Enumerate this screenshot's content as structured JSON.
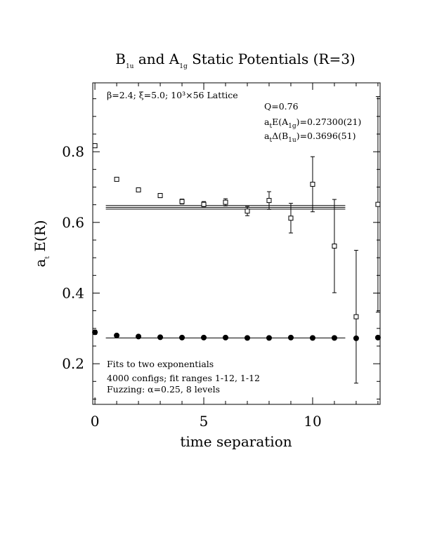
{
  "chart_data": {
    "type": "scatter",
    "title": "B1u and A1g Static Potentials (R=3)",
    "title_parts": {
      "b": "B",
      "b_sub": "1u",
      "mid": " and A",
      "a_sub": "1g",
      "tail": " Static Potentials (R=3)"
    },
    "xlabel": "time separation",
    "ylabel": "a_t E(R)",
    "ylabel_parts": {
      "main": "a",
      "sub": "t",
      "tail": " E(R)"
    },
    "xlim": [
      -0.1,
      13.1
    ],
    "ylim": [
      0.085,
      0.995
    ],
    "x_ticks": [
      0,
      5,
      10
    ],
    "x_tick_labels": [
      "0",
      "5",
      "10"
    ],
    "y_ticks": [
      0.2,
      0.4,
      0.6,
      0.8
    ],
    "y_tick_labels": [
      "0.2",
      "0.4",
      "0.6",
      "0.8"
    ],
    "grid": false,
    "series": [
      {
        "marker": "filled-circle",
        "x": [
          0,
          1,
          2,
          3,
          4,
          5,
          6,
          7,
          8,
          9,
          10,
          11,
          12,
          13
        ],
        "y": [
          0.289,
          0.28,
          0.277,
          0.275,
          0.274,
          0.274,
          0.274,
          0.273,
          0.273,
          0.274,
          0.273,
          0.273,
          0.272,
          0.274
        ],
        "err": [
          0.006,
          0.004,
          0.003,
          0.003,
          0.003,
          0.003,
          0.003,
          0.003,
          0.003,
          0.003,
          0.003,
          0.003,
          0.004,
          0.005
        ],
        "fit": {
          "value": 0.273,
          "x_range": [
            0.5,
            11.5
          ]
        }
      },
      {
        "marker": "open-square",
        "x": [
          0,
          1,
          2,
          3,
          4,
          5,
          6,
          7,
          8,
          9,
          10,
          11,
          12,
          13
        ],
        "y": [
          0.817,
          0.722,
          0.692,
          0.676,
          0.659,
          0.651,
          0.657,
          0.632,
          0.662,
          0.612,
          0.708,
          0.533,
          0.333,
          0.651
        ],
        "err": [
          0.004,
          0.004,
          0.005,
          0.006,
          0.007,
          0.008,
          0.01,
          0.013,
          0.025,
          0.042,
          0.078,
          0.132,
          0.188,
          0.305
        ],
        "fit": {
          "value": 0.6426,
          "err": 0.0051,
          "x_range": [
            0.5,
            11.5
          ]
        }
      }
    ],
    "annotations": {
      "params": "β=2.4; ξ=5.0; 10³×56 Lattice",
      "q_value": "Q=0.76",
      "energy_a1g": {
        "main": "a",
        "sub1": "t",
        "mid": "E(A",
        "sub2": "1g",
        "tail": ")=0.27300(21)"
      },
      "energy_b1u": {
        "main": "a",
        "sub1": "t",
        "mid": "Δ(B",
        "sub2": "1u",
        "tail": ")=0.3696(51)"
      },
      "fit_line1": "Fits to two exponentials",
      "fit_line2": "4000 configs; fit ranges 1-12, 1-12",
      "fit_line3": "Fuzzing: α=0.25, 8 levels"
    }
  }
}
